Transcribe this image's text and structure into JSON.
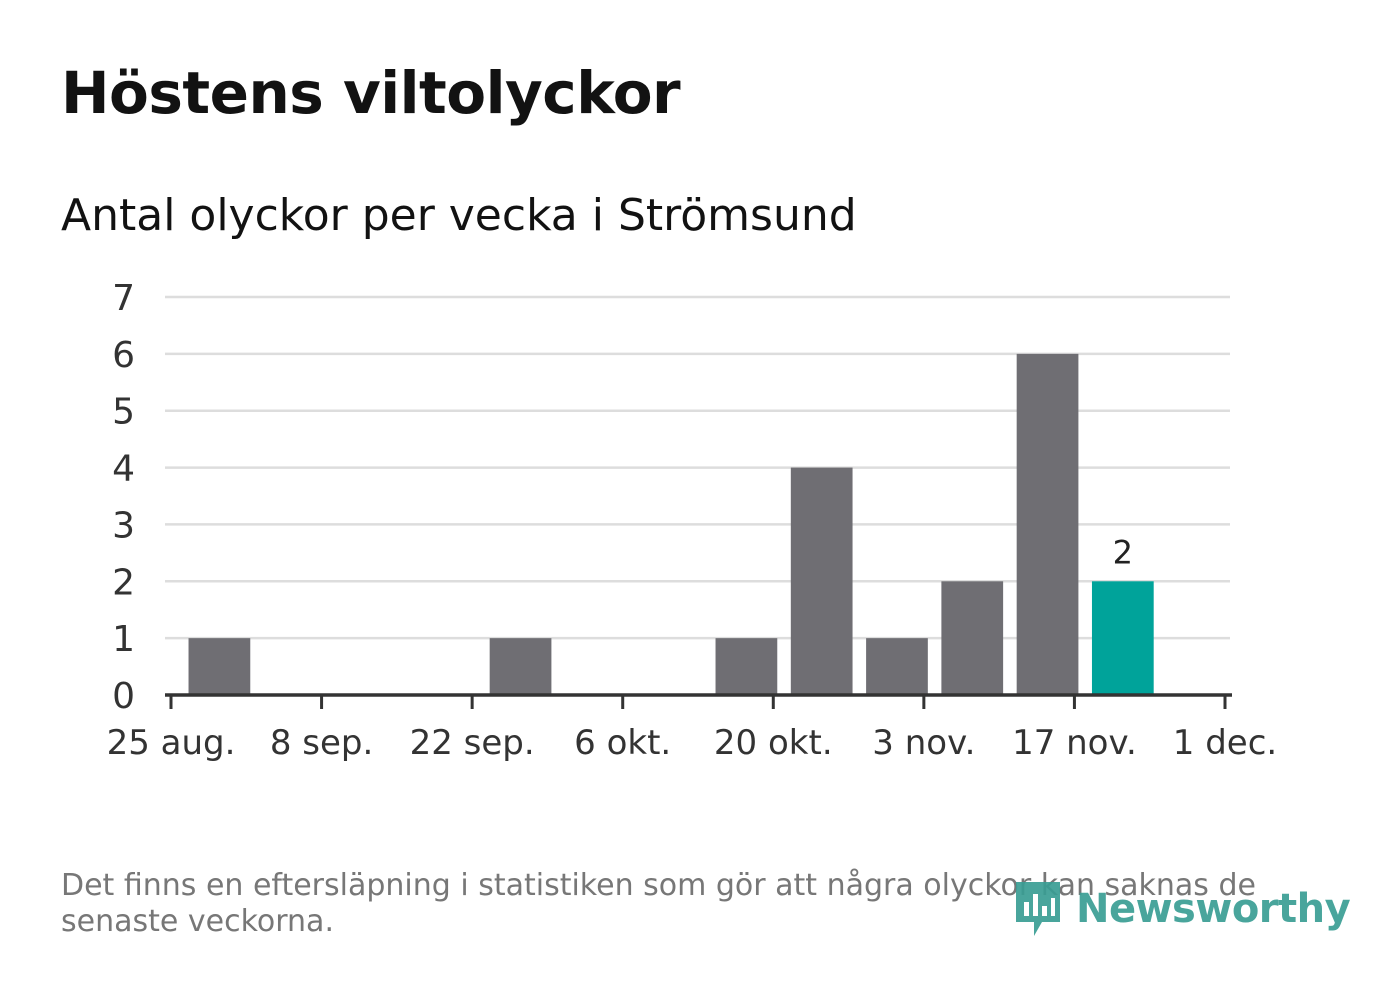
{
  "title": "Höstens viltolyckor",
  "subtitle": "Antal olyckor per vecka i Strömsund",
  "footnote": "Det finns en eftersläpning i statistiken som gör att några olyckor kan saknas de senaste veckorna.",
  "brand": {
    "name": "Newsworthy",
    "icon": "newsworthy-logo-icon",
    "color": "#3a9e94"
  },
  "colors": {
    "bar": "#6f6e73",
    "highlight": "#00a39a",
    "grid": "#dddddd",
    "axis": "#333333"
  },
  "chart_data": {
    "type": "bar",
    "title": "Höstens viltolyckor",
    "subtitle": "Antal olyckor per vecka i Strömsund",
    "xlabel": "",
    "ylabel": "",
    "x_axis_start": "2019-08-25",
    "x_axis_end": "2019-12-01",
    "x_ticks": [
      "25 aug.",
      "8 sep.",
      "22 sep.",
      "6 okt.",
      "20 okt.",
      "3 nov.",
      "17 nov.",
      "1 dec."
    ],
    "y_ticks": [
      0,
      1,
      2,
      3,
      4,
      5,
      6,
      7
    ],
    "ylim": [
      0,
      7
    ],
    "grid": true,
    "x": [
      "2019-08-26",
      "2019-09-02",
      "2019-09-09",
      "2019-09-16",
      "2019-09-23",
      "2019-09-30",
      "2019-10-07",
      "2019-10-14",
      "2019-10-21",
      "2019-10-28",
      "2019-11-04",
      "2019-11-11",
      "2019-11-18"
    ],
    "values": [
      1,
      0,
      0,
      0,
      1,
      0,
      0,
      1,
      4,
      1,
      2,
      6,
      2
    ],
    "highlight_last": true,
    "data_labels": [
      {
        "x": "2019-11-18",
        "value": "2"
      }
    ]
  }
}
